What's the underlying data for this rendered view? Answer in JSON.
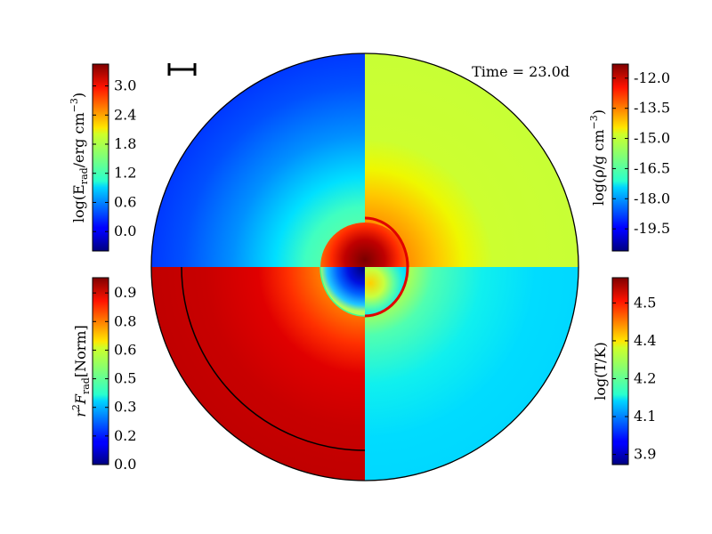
{
  "chart_data": {
    "type": "heatmap",
    "title": "",
    "time_label": "Time = 23.0d",
    "colormap": "jet",
    "quadrants": [
      {
        "name": "top-left",
        "quantity": "log(E_rad / erg cm^-3)"
      },
      {
        "name": "top-right",
        "quantity": "log(rho / g cm^-3)"
      },
      {
        "name": "bottom-left",
        "quantity": "r^2 F_rad [Norm]"
      },
      {
        "name": "bottom-right",
        "quantity": "log(T / K)"
      }
    ],
    "colorbars": {
      "top_left": {
        "label_main": "log(E",
        "label_sub": "rad",
        "label_rest": "/erg cm",
        "label_sup": "−3",
        "label_close": ")",
        "range": [
          -0.4,
          3.45
        ],
        "ticks": [
          "0.0",
          "0.6",
          "1.2",
          "1.8",
          "2.4",
          "3.0"
        ],
        "tick_values": [
          0.0,
          0.6,
          1.2,
          1.8,
          2.4,
          3.0
        ]
      },
      "top_right": {
        "label_main": "log(ρ/g cm",
        "label_sup": "−3",
        "label_close": ")",
        "range": [
          -20.6,
          -11.3
        ],
        "ticks": [
          "-12.0",
          "-13.5",
          "-15.0",
          "-16.5",
          "-18.0",
          "-19.5"
        ],
        "tick_values": [
          -12.0,
          -13.5,
          -15.0,
          -16.5,
          -18.0,
          -19.5
        ]
      },
      "bottom_left": {
        "label_pre": "r",
        "label_sup": "2",
        "label_mid": "F",
        "label_sub": "rad",
        "label_rest": "[Norm]",
        "range": [
          0.0,
          0.98
        ],
        "ticks": [
          "0.0",
          "0.2",
          "0.3",
          "0.5",
          "0.6",
          "0.8",
          "0.9"
        ],
        "tick_values": [
          0.0,
          0.15,
          0.3,
          0.45,
          0.6,
          0.75,
          0.9
        ]
      },
      "bottom_right": {
        "label_main": "log(T/K)",
        "range": [
          3.86,
          4.6
        ],
        "ticks": [
          "3.9",
          "4.1",
          "4.2",
          "4.4",
          "4.5"
        ],
        "tick_values": [
          3.9,
          4.05,
          4.2,
          4.35,
          4.5
        ]
      }
    },
    "scale_bar": true,
    "grid": false
  }
}
